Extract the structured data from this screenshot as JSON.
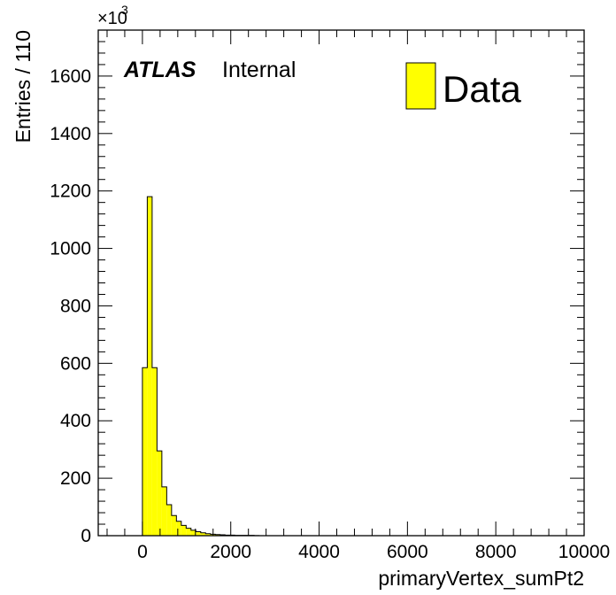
{
  "chart_data": {
    "type": "bar",
    "title": "",
    "xlabel": "primaryVertex_sumPt2",
    "ylabel": "Entries / 110",
    "y_multiplier": "×10",
    "y_multiplier_exp": "3",
    "xlim": [
      -1000,
      10000
    ],
    "ylim": [
      0,
      1760
    ],
    "xticks": [
      0,
      2000,
      4000,
      6000,
      8000,
      10000
    ],
    "yticks": [
      0,
      200,
      400,
      600,
      800,
      1000,
      1200,
      1400,
      1600
    ],
    "bin_width": 110,
    "bin_edges_start": 0,
    "series": [
      {
        "name": "Data",
        "color": "#ffff00",
        "edge_color": "#000000",
        "values": [
          585,
          1180,
          585,
          295,
          170,
          108,
          70,
          50,
          36,
          26,
          19,
          14,
          10,
          7,
          5,
          4,
          3,
          2,
          2,
          1,
          1,
          1,
          1,
          0.5
        ]
      }
    ],
    "labels": {
      "atlas": "ATLAS",
      "internal": "Internal"
    },
    "legend": {
      "position": "top-right",
      "entries": [
        "Data"
      ]
    },
    "grid": false
  }
}
